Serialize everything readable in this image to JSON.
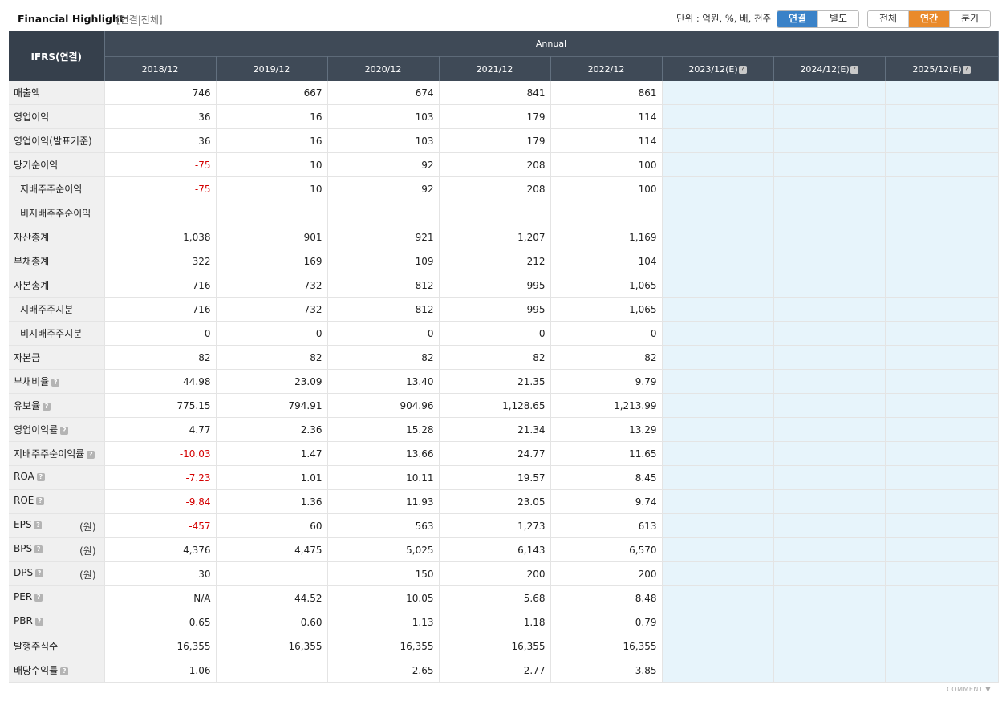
{
  "header": {
    "title": "Financial Highlight",
    "subtitle": "[연결|전체]",
    "unit_text": "단위 : 억원, %, 배, 천주",
    "scope_tabs": [
      "연결",
      "별도"
    ],
    "range_tabs": [
      "전체",
      "연간",
      "분기"
    ]
  },
  "table": {
    "corner_label": "IFRS(연결)",
    "group_label": "Annual",
    "columns": [
      "2018/12",
      "2019/12",
      "2020/12",
      "2021/12",
      "2022/12",
      "2023/12(E)",
      "2024/12(E)",
      "2025/12(E)"
    ],
    "help_glyph": "?",
    "rows": [
      {
        "label": "매출액",
        "values": [
          "746",
          "667",
          "674",
          "841",
          "861"
        ]
      },
      {
        "label": "영업이익",
        "values": [
          "36",
          "16",
          "103",
          "179",
          "114"
        ]
      },
      {
        "label": "영업이익(발표기준)",
        "values": [
          "36",
          "16",
          "103",
          "179",
          "114"
        ]
      },
      {
        "label": "당기순이익",
        "values": [
          "-75",
          "10",
          "92",
          "208",
          "100"
        ]
      },
      {
        "label": "지배주주순이익",
        "values": [
          "-75",
          "10",
          "92",
          "208",
          "100"
        ]
      },
      {
        "label": "비지배주주순이익",
        "values": [
          "",
          "",
          "",
          "",
          ""
        ]
      },
      {
        "label": "자산총계",
        "values": [
          "1,038",
          "901",
          "921",
          "1,207",
          "1,169"
        ]
      },
      {
        "label": "부채총계",
        "values": [
          "322",
          "169",
          "109",
          "212",
          "104"
        ]
      },
      {
        "label": "자본총계",
        "values": [
          "716",
          "732",
          "812",
          "995",
          "1,065"
        ]
      },
      {
        "label": "지배주주지분",
        "values": [
          "716",
          "732",
          "812",
          "995",
          "1,065"
        ]
      },
      {
        "label": "비지배주주지분",
        "values": [
          "0",
          "0",
          "0",
          "0",
          "0"
        ]
      },
      {
        "label": "자본금",
        "values": [
          "82",
          "82",
          "82",
          "82",
          "82"
        ]
      },
      {
        "label": "부채비율",
        "values": [
          "44.98",
          "23.09",
          "13.40",
          "21.35",
          "9.79"
        ]
      },
      {
        "label": "유보율",
        "values": [
          "775.15",
          "794.91",
          "904.96",
          "1,128.65",
          "1,213.99"
        ]
      },
      {
        "label": "영업이익률",
        "values": [
          "4.77",
          "2.36",
          "15.28",
          "21.34",
          "13.29"
        ]
      },
      {
        "label": "지배주주순이익률",
        "values": [
          "-10.03",
          "1.47",
          "13.66",
          "24.77",
          "11.65"
        ]
      },
      {
        "label": "ROA",
        "values": [
          "-7.23",
          "1.01",
          "10.11",
          "19.57",
          "8.45"
        ]
      },
      {
        "label": "ROE",
        "values": [
          "-9.84",
          "1.36",
          "11.93",
          "23.05",
          "9.74"
        ]
      },
      {
        "label": "EPS",
        "unit": "(원)",
        "values": [
          "-457",
          "60",
          "563",
          "1,273",
          "613"
        ]
      },
      {
        "label": "BPS",
        "unit": "(원)",
        "values": [
          "4,376",
          "4,475",
          "5,025",
          "6,143",
          "6,570"
        ]
      },
      {
        "label": "DPS",
        "unit": "(원)",
        "values": [
          "30",
          "",
          "150",
          "200",
          "200"
        ]
      },
      {
        "label": "PER",
        "values": [
          "N/A",
          "44.52",
          "10.05",
          "5.68",
          "8.48"
        ]
      },
      {
        "label": "PBR",
        "values": [
          "0.65",
          "0.60",
          "1.13",
          "1.18",
          "0.79"
        ]
      },
      {
        "label": "발행주식수",
        "values": [
          "16,355",
          "16,355",
          "16,355",
          "16,355",
          "16,355"
        ]
      },
      {
        "label": "배당수익률",
        "values": [
          "1.06",
          "",
          "2.65",
          "2.77",
          "3.85"
        ]
      }
    ]
  },
  "footer": {
    "comment_label": "COMMENT ▼"
  },
  "colors": {
    "header_bg": "#3f4a57",
    "estimate_bg": "#e7f4fb",
    "negative": "#d40000",
    "active_scope": "#3a82c8",
    "active_range": "#e98a2b"
  }
}
